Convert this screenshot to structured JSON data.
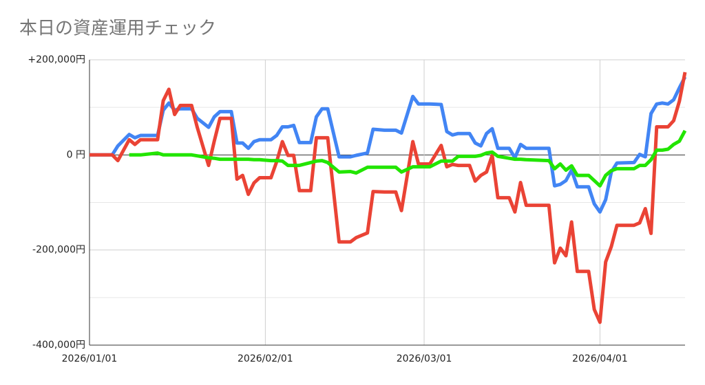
{
  "chart_data": {
    "type": "line",
    "title": "本日の資産運用チェック",
    "x": [
      "2026-01-01",
      "2026-01-05",
      "2026-01-06",
      "2026-01-08",
      "2026-01-09",
      "2026-01-10",
      "2026-01-13",
      "2026-01-14",
      "2026-01-15",
      "2026-01-16",
      "2026-01-17",
      "2026-01-19",
      "2026-01-20",
      "2026-01-22",
      "2026-01-23",
      "2026-01-24",
      "2026-01-26",
      "2026-01-27",
      "2026-01-28",
      "2026-01-29",
      "2026-01-30",
      "2026-01-31",
      "2026-02-02",
      "2026-02-03",
      "2026-02-04",
      "2026-02-05",
      "2026-02-06",
      "2026-02-07",
      "2026-02-09",
      "2026-02-10",
      "2026-02-11",
      "2026-02-12",
      "2026-02-14",
      "2026-02-16",
      "2026-02-17",
      "2026-02-19",
      "2026-02-20",
      "2026-02-22",
      "2026-02-24",
      "2026-02-25",
      "2026-02-27",
      "2026-02-28",
      "2026-03-02",
      "2026-03-04",
      "2026-03-05",
      "2026-03-06",
      "2026-03-07",
      "2026-03-09",
      "2026-03-10",
      "2026-03-11",
      "2026-03-12",
      "2026-03-13",
      "2026-03-14",
      "2026-03-16",
      "2026-03-17",
      "2026-03-18",
      "2026-03-19",
      "2026-03-23",
      "2026-03-24",
      "2026-03-25",
      "2026-03-26",
      "2026-03-27",
      "2026-03-28",
      "2026-03-30",
      "2026-03-31",
      "2026-04-01",
      "2026-04-02",
      "2026-04-03",
      "2026-04-04",
      "2026-04-07",
      "2026-04-08",
      "2026-04-09",
      "2026-04-10",
      "2026-04-11",
      "2026-04-12",
      "2026-04-13",
      "2026-04-14",
      "2026-04-15",
      "2026-04-16"
    ],
    "series": [
      {
        "color": "#4285f4",
        "values": [
          0,
          0,
          19000,
          43000,
          36000,
          41000,
          41000,
          94000,
          109000,
          94000,
          97000,
          97000,
          77000,
          58000,
          80000,
          91000,
          91000,
          25000,
          25000,
          14000,
          28000,
          32000,
          32000,
          41000,
          59000,
          59000,
          62000,
          26000,
          26000,
          80000,
          97000,
          97000,
          -4000,
          -4000,
          -1000,
          4000,
          54000,
          52000,
          52000,
          46000,
          123000,
          107000,
          107000,
          106000,
          49000,
          42000,
          45000,
          45000,
          25000,
          19000,
          45000,
          55000,
          14000,
          14000,
          -6000,
          22000,
          14000,
          14000,
          -65000,
          -62000,
          -54000,
          -32000,
          -67000,
          -67000,
          -103000,
          -120000,
          -94000,
          -36000,
          -17000,
          -16000,
          1000,
          -4000,
          87000,
          107000,
          109000,
          107000,
          116000,
          141000,
          164000
        ]
      },
      {
        "color": "#ea4335",
        "values": [
          0,
          0,
          -12000,
          32000,
          22000,
          32000,
          32000,
          114000,
          138000,
          85000,
          104000,
          104000,
          58000,
          -22000,
          29000,
          77000,
          77000,
          -51000,
          -43000,
          -83000,
          -59000,
          -48000,
          -48000,
          -14000,
          28000,
          -1000,
          -1000,
          -75000,
          -75000,
          36000,
          36000,
          36000,
          -183000,
          -183000,
          -174000,
          -164000,
          -77000,
          -78000,
          -78000,
          -117000,
          28000,
          -19000,
          -19000,
          20000,
          -25000,
          -20000,
          -22000,
          -22000,
          -55000,
          -43000,
          -36000,
          -1000,
          -90000,
          -90000,
          -120000,
          -58000,
          -106000,
          -106000,
          -227000,
          -196000,
          -212000,
          -141000,
          -245000,
          -245000,
          -325000,
          -352000,
          -225000,
          -193000,
          -148000,
          -148000,
          -143000,
          -113000,
          -165000,
          59000,
          59000,
          59000,
          72000,
          113000,
          174000
        ]
      },
      {
        "color": "#22e500",
        "values": [
          null,
          null,
          null,
          0,
          0,
          0,
          4000,
          0,
          0,
          0,
          0,
          0,
          -2000,
          -6000,
          -7000,
          -9000,
          -9000,
          -9000,
          -9000,
          -9000,
          -10000,
          -10000,
          -12000,
          -12000,
          -13000,
          -22000,
          -22000,
          -22000,
          -16000,
          -13000,
          -12000,
          -16000,
          -36000,
          -35000,
          -38000,
          -26000,
          -26000,
          -26000,
          -26000,
          -36000,
          -25000,
          -25000,
          -25000,
          -13000,
          -13000,
          -13000,
          -3000,
          -3000,
          -3000,
          -1000,
          4000,
          6000,
          -3000,
          -7000,
          -9000,
          -9000,
          -10000,
          -12000,
          -29000,
          -19000,
          -32000,
          -23000,
          -43000,
          -43000,
          -54000,
          -65000,
          -43000,
          -33000,
          -29000,
          -29000,
          -22000,
          -22000,
          -10000,
          10000,
          10000,
          12000,
          22000,
          29000,
          51000
        ]
      }
    ],
    "xlim": [
      "2026-01-01",
      "2026-04-16"
    ],
    "xticks": [
      {
        "value": "2026-01-01",
        "label": "2026/01/01"
      },
      {
        "value": "2026-02-01",
        "label": "2026/02/01"
      },
      {
        "value": "2026-03-01",
        "label": "2026/03/01"
      },
      {
        "value": "2026-04-01",
        "label": "2026/04/01"
      }
    ],
    "ylim": [
      -400000,
      200000
    ],
    "yticks": [
      {
        "value": 200000,
        "label": "+200,000円"
      },
      {
        "value": 0,
        "label": "0 円"
      },
      {
        "value": -200000,
        "label": "-200,000円"
      },
      {
        "value": -400000,
        "label": "-400,000円"
      }
    ],
    "y_minor_ticks": [
      100000,
      -100000,
      -300000
    ],
    "grid": true
  }
}
